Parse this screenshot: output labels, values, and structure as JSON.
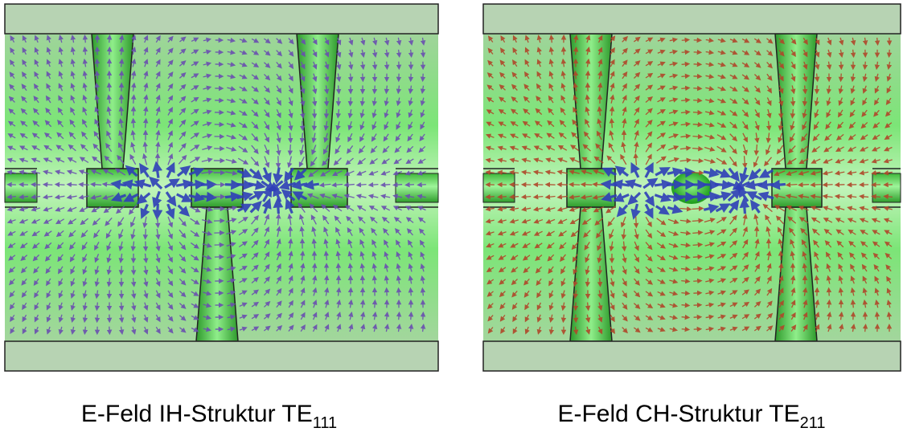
{
  "panels": [
    {
      "caption": {
        "text": "E-Feld IH-Struktur TE",
        "subscript": "111"
      }
    },
    {
      "caption": {
        "text": "E-Feld CH-Struktur TE",
        "subscript": "211"
      }
    }
  ]
}
